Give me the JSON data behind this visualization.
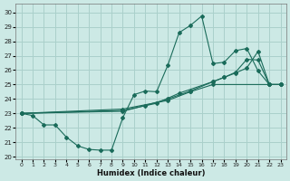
{
  "xlabel": "Humidex (Indice chaleur)",
  "xlim": [
    -0.5,
    23.5
  ],
  "ylim": [
    19.8,
    30.6
  ],
  "yticks": [
    20,
    21,
    22,
    23,
    24,
    25,
    26,
    27,
    28,
    29,
    30
  ],
  "xticks": [
    0,
    1,
    2,
    3,
    4,
    5,
    6,
    7,
    8,
    9,
    10,
    11,
    12,
    13,
    14,
    15,
    16,
    17,
    18,
    19,
    20,
    21,
    22,
    23
  ],
  "bg_color": "#cce9e5",
  "grid_color": "#aad0cb",
  "line_color": "#1a6b5a",
  "lines": [
    {
      "x": [
        0,
        1,
        2,
        3,
        4,
        5,
        6,
        7,
        8,
        9,
        10,
        11,
        12,
        13,
        14,
        15,
        16,
        17,
        18,
        19,
        20,
        21,
        22,
        23
      ],
      "y": [
        23.0,
        22.85,
        22.2,
        22.2,
        21.35,
        20.75,
        20.5,
        20.45,
        20.45,
        22.7,
        24.3,
        24.55,
        24.5,
        26.35,
        28.6,
        29.1,
        29.75,
        26.45,
        26.55,
        27.35,
        27.5,
        25.95,
        25.0,
        25.0
      ]
    },
    {
      "x": [
        0,
        9,
        13,
        15,
        17,
        22,
        23
      ],
      "y": [
        23.0,
        23.3,
        23.9,
        24.5,
        25.0,
        25.0,
        25.0
      ]
    },
    {
      "x": [
        0,
        9,
        12,
        14,
        17,
        18,
        19,
        20,
        21,
        22,
        23
      ],
      "y": [
        23.0,
        23.2,
        23.7,
        24.4,
        25.2,
        25.5,
        25.8,
        26.15,
        27.3,
        25.0,
        25.0
      ]
    },
    {
      "x": [
        0,
        9,
        11,
        13,
        15,
        17,
        18,
        19,
        20,
        21,
        22,
        23
      ],
      "y": [
        23.0,
        23.15,
        23.55,
        24.0,
        24.55,
        25.2,
        25.5,
        25.85,
        26.75,
        26.7,
        25.0,
        25.0
      ]
    }
  ]
}
